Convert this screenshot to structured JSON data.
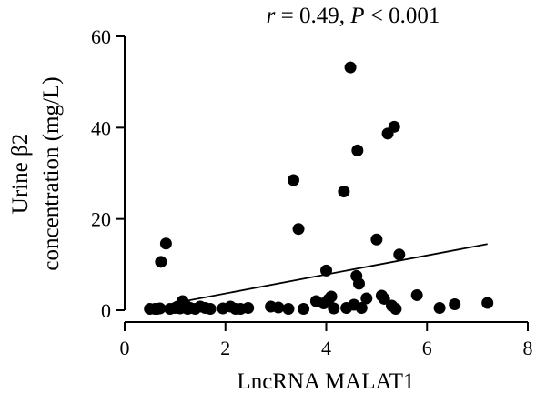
{
  "chart_data": {
    "type": "scatter",
    "title": "",
    "annotation": "r = 0.49, P < 0.001",
    "xlabel": "LncRNA MALAT1",
    "ylabel_lines": [
      "Urine β2",
      "concentration (mg/L)"
    ],
    "xlim": [
      0,
      8
    ],
    "ylim": [
      0,
      60
    ],
    "xticks": [
      0,
      2,
      4,
      6,
      8
    ],
    "yticks": [
      0,
      20,
      40,
      60
    ],
    "grid": false,
    "legend": "none",
    "marker_color": "#000000",
    "points": [
      [
        0.5,
        0.3
      ],
      [
        0.6,
        0.3
      ],
      [
        0.65,
        0.3
      ],
      [
        0.7,
        0.4
      ],
      [
        0.72,
        10.6
      ],
      [
        0.82,
        14.6
      ],
      [
        0.9,
        0.3
      ],
      [
        1.0,
        0.5
      ],
      [
        1.05,
        0.8
      ],
      [
        1.1,
        0.4
      ],
      [
        1.15,
        2.0
      ],
      [
        1.2,
        1.2
      ],
      [
        1.25,
        0.3
      ],
      [
        1.3,
        0.5
      ],
      [
        1.4,
        0.3
      ],
      [
        1.5,
        0.8
      ],
      [
        1.6,
        0.5
      ],
      [
        1.7,
        0.3
      ],
      [
        1.95,
        0.4
      ],
      [
        2.1,
        0.8
      ],
      [
        2.2,
        0.3
      ],
      [
        2.3,
        0.3
      ],
      [
        2.45,
        0.5
      ],
      [
        2.9,
        0.8
      ],
      [
        3.05,
        0.6
      ],
      [
        3.25,
        0.3
      ],
      [
        3.35,
        28.5
      ],
      [
        3.45,
        17.8
      ],
      [
        3.55,
        0.3
      ],
      [
        3.8,
        2.0
      ],
      [
        3.95,
        1.5
      ],
      [
        4.0,
        8.7
      ],
      [
        4.05,
        2.4
      ],
      [
        4.1,
        3.0
      ],
      [
        4.15,
        0.4
      ],
      [
        4.35,
        26.0
      ],
      [
        4.4,
        0.5
      ],
      [
        4.48,
        53.2
      ],
      [
        4.55,
        1.2
      ],
      [
        4.6,
        7.5
      ],
      [
        4.62,
        35.0
      ],
      [
        4.65,
        5.8
      ],
      [
        4.7,
        0.5
      ],
      [
        4.8,
        2.6
      ],
      [
        5.0,
        15.5
      ],
      [
        5.1,
        3.2
      ],
      [
        5.15,
        2.5
      ],
      [
        5.22,
        38.7
      ],
      [
        5.3,
        1.0
      ],
      [
        5.35,
        40.2
      ],
      [
        5.38,
        0.3
      ],
      [
        5.45,
        12.2
      ],
      [
        5.8,
        3.3
      ],
      [
        6.25,
        0.5
      ],
      [
        6.55,
        1.3
      ],
      [
        7.2,
        1.6
      ]
    ],
    "fit_line": {
      "x": [
        1.2,
        7.2
      ],
      "y": [
        2.0,
        14.5
      ]
    }
  }
}
